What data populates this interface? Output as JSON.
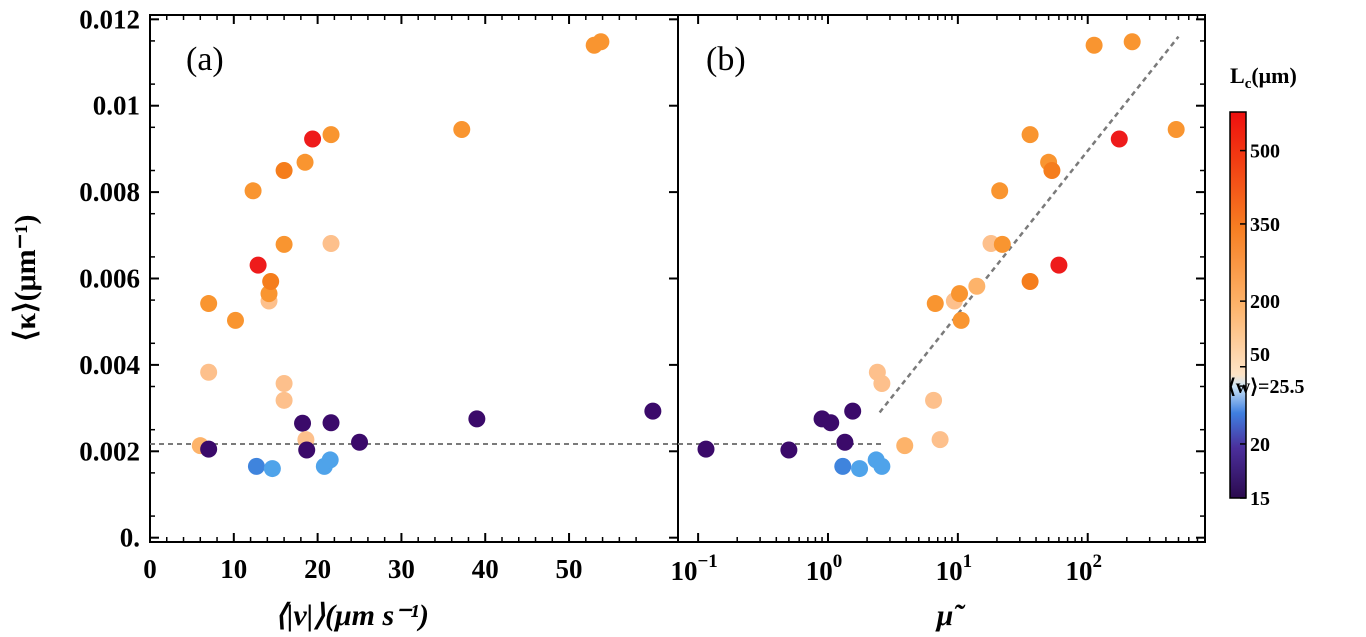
{
  "colors": {
    "dark_purple": "#3b0a6a",
    "blue": "#3f84dd",
    "light_blue": "#4fa3ea",
    "peach": "#fdc08c",
    "light_orange": "#fdb36a",
    "orange": "#f99530",
    "dark_orange": "#f57d1c",
    "red": "#ee1b1b",
    "reference_line": "#7a7a7a"
  },
  "chart_data": [
    {
      "panel_label": "(a)",
      "type": "scatter",
      "xlabel": "⟨|v|⟩(μm s⁻¹)",
      "ylabel": "⟨κ⟩(μm⁻¹)",
      "xlim": [
        0,
        63
      ],
      "ylim": [
        -0.0001,
        0.0121
      ],
      "xticks": [
        0,
        10,
        20,
        30,
        40,
        50
      ],
      "xtick_labels": [
        "0",
        "10",
        "20",
        "30",
        "40",
        "50"
      ],
      "yticks": [
        0,
        0.002,
        0.004,
        0.006,
        0.008,
        0.01,
        0.012
      ],
      "ytick_labels": [
        "0.",
        "0.002",
        "0.004",
        "0.006",
        "0.008",
        "0.01",
        "0.012"
      ],
      "reference_line": {
        "y": 0.00217,
        "style": "dashed"
      },
      "points": [
        {
          "x": 6.0,
          "y": 0.00213,
          "color_key": "light_orange"
        },
        {
          "x": 7.0,
          "y": 0.00205,
          "color_key": "dark_purple"
        },
        {
          "x": 7.0,
          "y": 0.00383,
          "color_key": "peach"
        },
        {
          "x": 7.0,
          "y": 0.00542,
          "color_key": "orange"
        },
        {
          "x": 10.2,
          "y": 0.00503,
          "color_key": "orange"
        },
        {
          "x": 12.3,
          "y": 0.00803,
          "color_key": "orange"
        },
        {
          "x": 12.7,
          "y": 0.00165,
          "color_key": "blue"
        },
        {
          "x": 12.9,
          "y": 0.00631,
          "color_key": "red"
        },
        {
          "x": 14.2,
          "y": 0.00548,
          "color_key": "peach"
        },
        {
          "x": 14.2,
          "y": 0.00565,
          "color_key": "orange"
        },
        {
          "x": 14.4,
          "y": 0.00593,
          "color_key": "dark_orange"
        },
        {
          "x": 14.6,
          "y": 0.0016,
          "color_key": "light_blue"
        },
        {
          "x": 16.0,
          "y": 0.00357,
          "color_key": "peach"
        },
        {
          "x": 16.0,
          "y": 0.00318,
          "color_key": "peach"
        },
        {
          "x": 16.0,
          "y": 0.00679,
          "color_key": "orange"
        },
        {
          "x": 16.0,
          "y": 0.0085,
          "color_key": "dark_orange"
        },
        {
          "x": 18.2,
          "y": 0.00265,
          "color_key": "dark_purple"
        },
        {
          "x": 18.5,
          "y": 0.00869,
          "color_key": "orange"
        },
        {
          "x": 18.6,
          "y": 0.00227,
          "color_key": "peach"
        },
        {
          "x": 18.7,
          "y": 0.00203,
          "color_key": "dark_purple"
        },
        {
          "x": 19.4,
          "y": 0.00923,
          "color_key": "red"
        },
        {
          "x": 20.8,
          "y": 0.00165,
          "color_key": "light_blue"
        },
        {
          "x": 21.5,
          "y": 0.0018,
          "color_key": "light_blue"
        },
        {
          "x": 21.6,
          "y": 0.00266,
          "color_key": "dark_purple"
        },
        {
          "x": 21.6,
          "y": 0.00681,
          "color_key": "peach"
        },
        {
          "x": 21.6,
          "y": 0.00933,
          "color_key": "orange"
        },
        {
          "x": 25.0,
          "y": 0.00221,
          "color_key": "dark_purple"
        },
        {
          "x": 37.2,
          "y": 0.00945,
          "color_key": "orange"
        },
        {
          "x": 39.0,
          "y": 0.00275,
          "color_key": "dark_purple"
        },
        {
          "x": 53.0,
          "y": 0.0114,
          "color_key": "orange"
        },
        {
          "x": 53.8,
          "y": 0.01148,
          "color_key": "orange"
        },
        {
          "x": 60.0,
          "y": 0.00293,
          "color_key": "dark_purple"
        }
      ]
    },
    {
      "panel_label": "(b)",
      "type": "scatter",
      "xlabel": "μ̃",
      "xscale": "log",
      "xlim": [
        0.07,
        800
      ],
      "ylim": [
        -0.0001,
        0.0121
      ],
      "xticks": [
        0.1,
        1,
        10,
        100
      ],
      "xtick_labels": [
        {
          "base": "10",
          "exp": "−1"
        },
        {
          "base": "10",
          "exp": "0"
        },
        {
          "base": "10",
          "exp": "1"
        },
        {
          "base": "10",
          "exp": "2"
        }
      ],
      "reference_lines": [
        {
          "type": "horizontal",
          "y": 0.00217,
          "x_range": [
            0.07,
            2.6
          ],
          "style": "dashed"
        },
        {
          "type": "line",
          "points": [
            [
              2.5,
              0.0029
            ],
            [
              500,
              0.0116
            ]
          ],
          "style": "dashed"
        }
      ],
      "points": [
        {
          "x": 0.115,
          "y": 0.00205,
          "color_key": "dark_purple"
        },
        {
          "x": 0.5,
          "y": 0.00203,
          "color_key": "dark_purple"
        },
        {
          "x": 0.9,
          "y": 0.00275,
          "color_key": "dark_purple"
        },
        {
          "x": 1.05,
          "y": 0.00266,
          "color_key": "dark_purple"
        },
        {
          "x": 1.35,
          "y": 0.00221,
          "color_key": "dark_purple"
        },
        {
          "x": 1.55,
          "y": 0.00293,
          "color_key": "dark_purple"
        },
        {
          "x": 1.3,
          "y": 0.00165,
          "color_key": "blue"
        },
        {
          "x": 1.75,
          "y": 0.0016,
          "color_key": "light_blue"
        },
        {
          "x": 2.35,
          "y": 0.0018,
          "color_key": "light_blue"
        },
        {
          "x": 2.6,
          "y": 0.00165,
          "color_key": "light_blue"
        },
        {
          "x": 2.4,
          "y": 0.00383,
          "color_key": "peach"
        },
        {
          "x": 2.6,
          "y": 0.00357,
          "color_key": "peach"
        },
        {
          "x": 3.9,
          "y": 0.00213,
          "color_key": "light_orange"
        },
        {
          "x": 6.5,
          "y": 0.00318,
          "color_key": "peach"
        },
        {
          "x": 6.7,
          "y": 0.00542,
          "color_key": "orange"
        },
        {
          "x": 7.3,
          "y": 0.00227,
          "color_key": "peach"
        },
        {
          "x": 9.4,
          "y": 0.00548,
          "color_key": "peach"
        },
        {
          "x": 10.3,
          "y": 0.00565,
          "color_key": "orange"
        },
        {
          "x": 10.6,
          "y": 0.00503,
          "color_key": "orange"
        },
        {
          "x": 14.0,
          "y": 0.00582,
          "color_key": "light_orange"
        },
        {
          "x": 18.0,
          "y": 0.00681,
          "color_key": "peach"
        },
        {
          "x": 21.0,
          "y": 0.00803,
          "color_key": "orange"
        },
        {
          "x": 22.0,
          "y": 0.00679,
          "color_key": "orange"
        },
        {
          "x": 36.0,
          "y": 0.00933,
          "color_key": "orange"
        },
        {
          "x": 36.0,
          "y": 0.00593,
          "color_key": "dark_orange"
        },
        {
          "x": 50.0,
          "y": 0.00869,
          "color_key": "orange"
        },
        {
          "x": 53.0,
          "y": 0.0085,
          "color_key": "dark_orange"
        },
        {
          "x": 60.0,
          "y": 0.00631,
          "color_key": "red"
        },
        {
          "x": 112.0,
          "y": 0.0114,
          "color_key": "orange"
        },
        {
          "x": 175.0,
          "y": 0.00923,
          "color_key": "red"
        },
        {
          "x": 220.0,
          "y": 0.01148,
          "color_key": "orange"
        },
        {
          "x": 480.0,
          "y": 0.00945,
          "color_key": "orange"
        }
      ]
    }
  ],
  "colorbar": {
    "title": {
      "main": "L",
      "sub": "c",
      "rest": "(μm)"
    },
    "ticks": [
      {
        "value": 500,
        "label": "500",
        "frac": 0.9
      },
      {
        "value": 350,
        "label": "350",
        "frac": 0.71
      },
      {
        "value": 200,
        "label": "200",
        "frac": 0.51
      },
      {
        "value": 50,
        "label": "50",
        "frac": 0.34
      },
      {
        "value": 25.5,
        "label": "⟨w⟩=25.5",
        "frac": 0.29
      },
      {
        "value": 20,
        "label": "20",
        "frac": 0.14
      },
      {
        "value": 15,
        "label": "15",
        "frac": 0.0
      }
    ],
    "gradient": [
      {
        "offset": 0.0,
        "color": "#2b0a4e"
      },
      {
        "offset": 0.13,
        "color": "#4b2f9c"
      },
      {
        "offset": 0.22,
        "color": "#3f7fe0"
      },
      {
        "offset": 0.29,
        "color": "#cfe6f7"
      },
      {
        "offset": 0.32,
        "color": "#fde3c6"
      },
      {
        "offset": 0.5,
        "color": "#fdb36a"
      },
      {
        "offset": 0.7,
        "color": "#f77e22"
      },
      {
        "offset": 0.88,
        "color": "#f23b12"
      },
      {
        "offset": 1.0,
        "color": "#ee0f0f"
      }
    ]
  }
}
